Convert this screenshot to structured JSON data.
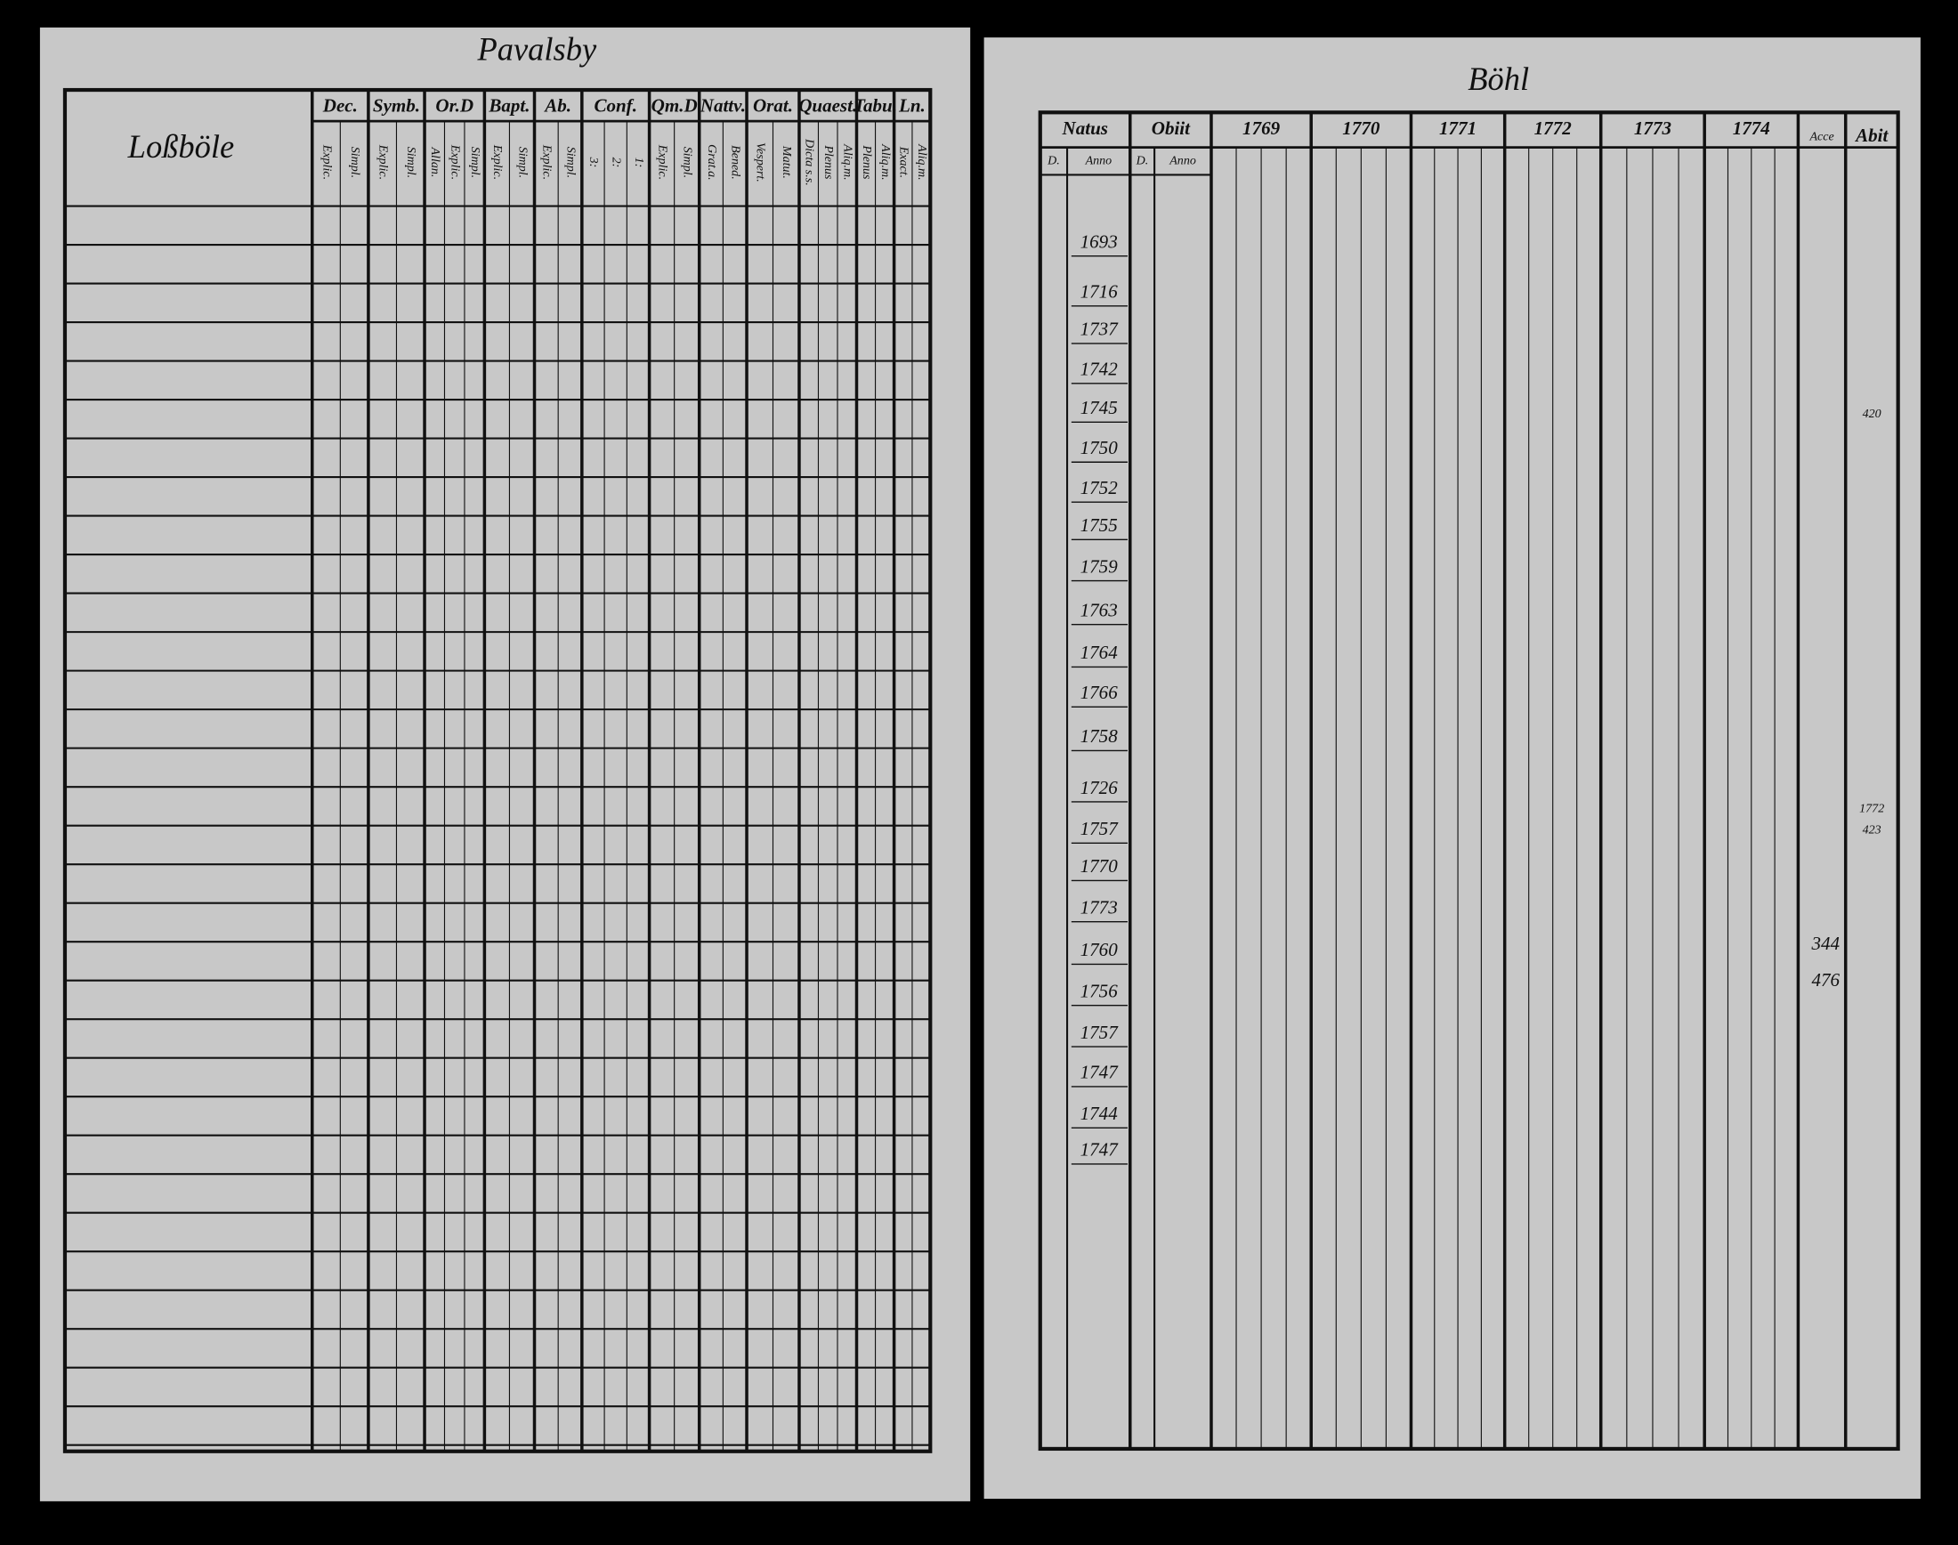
{
  "left": {
    "title": "Pavalsby",
    "village": "Loßböle",
    "columns": [
      {
        "label": "Dec.",
        "sub": [
          "Explic.",
          "Simpl."
        ]
      },
      {
        "label": "Symb.",
        "sub": [
          "Explic.",
          "Simpl."
        ]
      },
      {
        "label": "Or.D",
        "sub": [
          "Allan.",
          "Explic.",
          "Simpl."
        ]
      },
      {
        "label": "Bapt.",
        "sub": [
          "Explic.",
          "Simpl."
        ]
      },
      {
        "label": "Ab.",
        "sub": [
          "Explic.",
          "Simpl."
        ]
      },
      {
        "label": "Conf.",
        "sub": [
          "3:",
          "2:",
          "1:"
        ]
      },
      {
        "label": "Qm.D",
        "sub": [
          "Explic.",
          "Simpl."
        ]
      },
      {
        "label": "Nattv.",
        "sub": [
          "Grat.a.",
          "Bened."
        ]
      },
      {
        "label": "Orat.",
        "sub": [
          "Vespert.",
          "Matut."
        ]
      },
      {
        "label": "Quaest.",
        "sub": [
          "Dicta s.s.",
          "Plenus",
          "Aliq.m."
        ]
      },
      {
        "label": "Tabu.",
        "sub": [
          "Plenus",
          "Aliq.m."
        ]
      },
      {
        "label": "Ln.",
        "sub": [
          "Exact.",
          "Aliq.m."
        ]
      }
    ]
  },
  "right": {
    "title": "Böhl",
    "natus": {
      "label": "Natus",
      "sub": [
        "D.",
        "Anno"
      ]
    },
    "obiit": {
      "label": "Obiit",
      "sub": [
        "D.",
        "Anno"
      ]
    },
    "years": [
      1769,
      1770,
      1771,
      1772,
      1773,
      1774
    ],
    "acce": "Acce",
    "abit": "Abit",
    "birth_years": [
      1693,
      1716,
      1737,
      1742,
      1745,
      1750,
      1752,
      1755,
      1759,
      1763,
      1764,
      1766,
      1758,
      1726,
      1757,
      1770,
      1773,
      1760,
      1756,
      1757,
      1747,
      1744,
      1747
    ],
    "abit_notes": [
      "1772",
      "423",
      "420"
    ],
    "acce_notes": [
      "344",
      "476"
    ]
  }
}
